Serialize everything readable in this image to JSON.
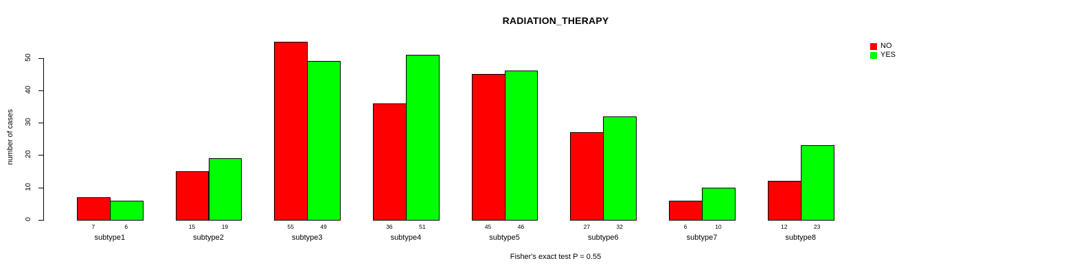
{
  "chart_data": {
    "type": "bar",
    "title": "RADIATION_THERAPY",
    "ylabel": "number of cases",
    "xlabel": "",
    "footnote": "Fisher's exact test P = 0.55",
    "categories": [
      "subtype1",
      "subtype2",
      "subtype3",
      "subtype4",
      "subtype5",
      "subtype6",
      "subtype7",
      "subtype8"
    ],
    "series": [
      {
        "name": "NO",
        "color": "#ff0000",
        "values": [
          7,
          15,
          55,
          36,
          45,
          27,
          6,
          12
        ]
      },
      {
        "name": "YES",
        "color": "#00ff00",
        "values": [
          6,
          19,
          49,
          51,
          46,
          32,
          10,
          23
        ]
      }
    ],
    "bar_value_labels": {
      "NO": [
        7,
        15,
        55,
        36,
        45,
        27,
        6,
        12
      ],
      "YES": [
        6,
        19,
        49,
        51,
        46,
        32,
        10,
        23
      ]
    },
    "yticks": [
      0,
      10,
      20,
      30,
      40,
      50
    ],
    "ylim": [
      0,
      55
    ],
    "grid": false,
    "legend_position": "top-right",
    "bar_border_color": "#000000",
    "background_color": "#ffffff"
  }
}
